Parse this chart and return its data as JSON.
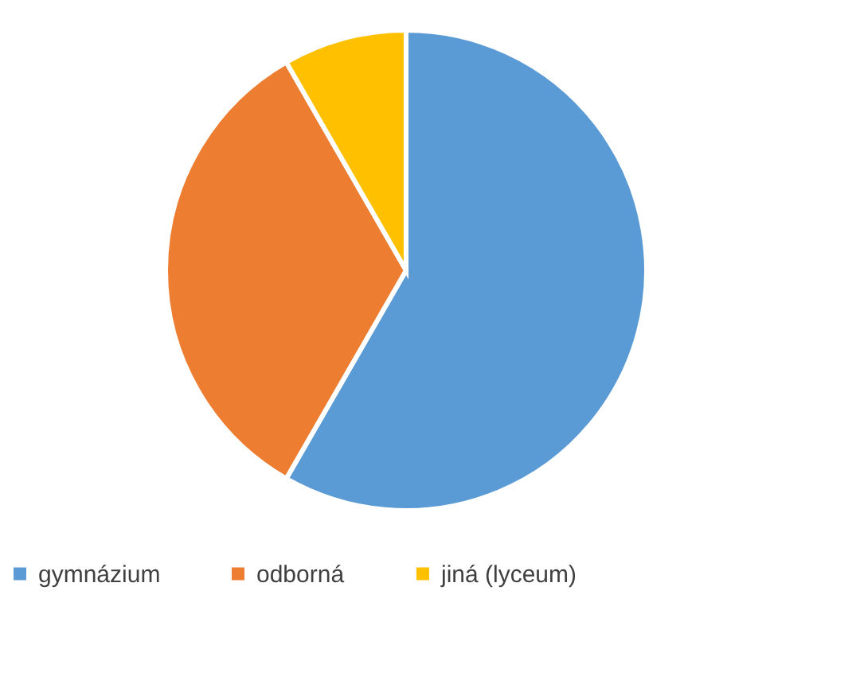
{
  "chart_data": {
    "type": "pie",
    "categories": [
      "gymnázium",
      "odborná",
      "jiná (lyceum)"
    ],
    "values": [
      58.3,
      33.4,
      8.3
    ],
    "colors": [
      "#5b9bd5",
      "#ed7d31",
      "#ffc000"
    ],
    "legend": "bottom"
  }
}
